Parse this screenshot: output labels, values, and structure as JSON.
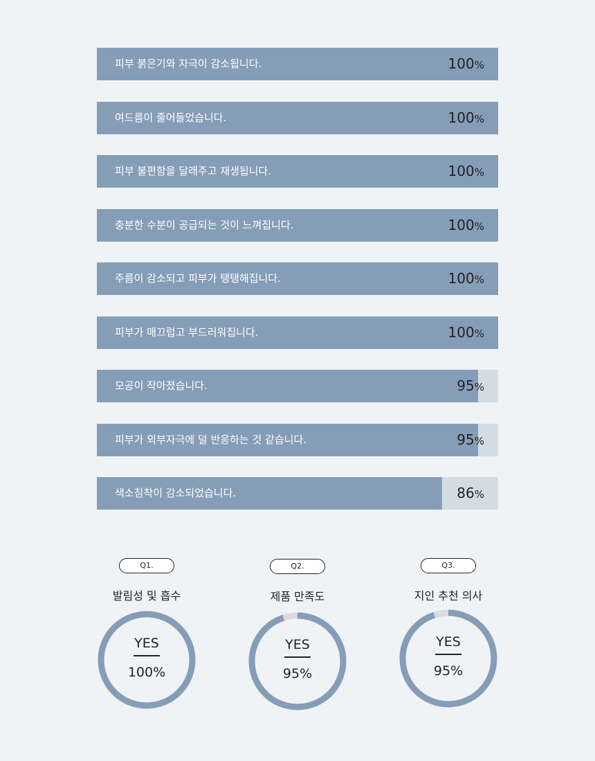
{
  "chart_data": [
    {
      "type": "bar",
      "orientation": "horizontal",
      "categories": [
        "피부 붉은기와 자극이 감소됩니다.",
        "여드름이 줄어들었습니다.",
        "피부 불편함을 달래주고 재생됩니다.",
        "충분한 수분이 공급되는 것이 느껴집니다.",
        "주름이 감소되고 피부가 탱탱해집니다.",
        "피부가 매끄럽고 부드러워집니다.",
        "모공이 작아졌습니다.",
        "피부가 외부자극에  덜 반응하는 것 같습니다.",
        "색소침착이 감소되었습니다."
      ],
      "values": [
        100,
        100,
        100,
        100,
        100,
        100,
        95,
        95,
        86
      ],
      "unit": "%",
      "xlim": [
        0,
        100
      ],
      "colors": {
        "fill": "#869db8",
        "track": "#d4dce3"
      }
    },
    {
      "type": "pie",
      "subtype": "donut",
      "items": [
        {
          "question": "Q1.",
          "title": "발림성 및 흡수",
          "answer": "YES",
          "value": 100,
          "value_label": "100%"
        },
        {
          "question": "Q2.",
          "title": "제품 만족도",
          "answer": "YES",
          "value": 95,
          "value_label": "95%"
        },
        {
          "question": "Q3.",
          "title": "지인 추천 의사",
          "answer": "YES",
          "value": 95,
          "value_label": "95%"
        }
      ],
      "colors": {
        "ring": "#869db8",
        "remainder": "#d9dcdf"
      }
    }
  ]
}
